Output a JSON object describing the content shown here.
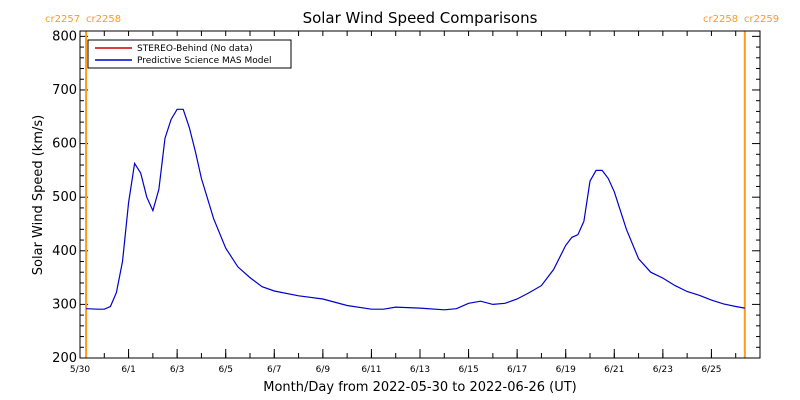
{
  "chart_data": {
    "type": "line",
    "title": "Solar Wind Speed Comparisons",
    "xlabel": "Month/Day from 2022-05-30 to 2022-06-26 (UT)",
    "ylabel": "Solar Wind Speed (km/s)",
    "xlim": [
      "2022-05-30",
      "2022-06-27"
    ],
    "ylim": [
      200,
      810
    ],
    "yticks": [
      200,
      300,
      400,
      500,
      600,
      700,
      800
    ],
    "xticks": [
      {
        "date": "2022-05-30",
        "label": "5/30"
      },
      {
        "date": "2022-06-01",
        "label": "6/1"
      },
      {
        "date": "2022-06-03",
        "label": "6/3"
      },
      {
        "date": "2022-06-05",
        "label": "6/5"
      },
      {
        "date": "2022-06-07",
        "label": "6/7"
      },
      {
        "date": "2022-06-09",
        "label": "6/9"
      },
      {
        "date": "2022-06-11",
        "label": "6/11"
      },
      {
        "date": "2022-06-13",
        "label": "6/13"
      },
      {
        "date": "2022-06-15",
        "label": "6/15"
      },
      {
        "date": "2022-06-17",
        "label": "6/17"
      },
      {
        "date": "2022-06-19",
        "label": "6/19"
      },
      {
        "date": "2022-06-21",
        "label": "6/21"
      },
      {
        "date": "2022-06-23",
        "label": "6/23"
      },
      {
        "date": "2022-06-25",
        "label": "6/25"
      }
    ],
    "carrington_labels": {
      "left": [
        "cr2257",
        "cr2258"
      ],
      "right": [
        "cr2258",
        "cr2259"
      ]
    },
    "carrington_markers": [
      "2022-05-30 06:00",
      "2022-06-26 09:00"
    ],
    "series": [
      {
        "name": "STEREO-Behind (No data)",
        "color": "#cc0000",
        "points": []
      },
      {
        "name": "Predictive Science MAS Model",
        "color": "#0000cc",
        "points": [
          [
            "2022-05-30 06:00",
            292
          ],
          [
            "2022-05-30 18:00",
            291
          ],
          [
            "2022-05-31 00:00",
            291
          ],
          [
            "2022-05-31 06:00",
            296
          ],
          [
            "2022-05-31 12:00",
            322
          ],
          [
            "2022-05-31 18:00",
            380
          ],
          [
            "2022-06-01 00:00",
            490
          ],
          [
            "2022-06-01 06:00",
            563
          ],
          [
            "2022-06-01 12:00",
            545
          ],
          [
            "2022-06-01 18:00",
            500
          ],
          [
            "2022-06-02 00:00",
            475
          ],
          [
            "2022-06-02 06:00",
            515
          ],
          [
            "2022-06-02 12:00",
            610
          ],
          [
            "2022-06-02 18:00",
            645
          ],
          [
            "2022-06-03 00:00",
            664
          ],
          [
            "2022-06-03 06:00",
            664
          ],
          [
            "2022-06-03 12:00",
            630
          ],
          [
            "2022-06-03 18:00",
            585
          ],
          [
            "2022-06-04 00:00",
            535
          ],
          [
            "2022-06-04 12:00",
            460
          ],
          [
            "2022-06-05 00:00",
            405
          ],
          [
            "2022-06-05 12:00",
            370
          ],
          [
            "2022-06-06 00:00",
            350
          ],
          [
            "2022-06-06 12:00",
            333
          ],
          [
            "2022-06-07 00:00",
            325
          ],
          [
            "2022-06-08 00:00",
            316
          ],
          [
            "2022-06-09 00:00",
            310
          ],
          [
            "2022-06-10 00:00",
            298
          ],
          [
            "2022-06-11 00:00",
            291
          ],
          [
            "2022-06-11 12:00",
            291
          ],
          [
            "2022-06-12 00:00",
            295
          ],
          [
            "2022-06-13 00:00",
            293
          ],
          [
            "2022-06-14 00:00",
            290
          ],
          [
            "2022-06-14 12:00",
            292
          ],
          [
            "2022-06-15 00:00",
            302
          ],
          [
            "2022-06-15 12:00",
            306
          ],
          [
            "2022-06-16 00:00",
            300
          ],
          [
            "2022-06-16 12:00",
            302
          ],
          [
            "2022-06-17 00:00",
            310
          ],
          [
            "2022-06-17 12:00",
            322
          ],
          [
            "2022-06-18 00:00",
            335
          ],
          [
            "2022-06-18 12:00",
            365
          ],
          [
            "2022-06-19 00:00",
            410
          ],
          [
            "2022-06-19 06:00",
            425
          ],
          [
            "2022-06-19 12:00",
            430
          ],
          [
            "2022-06-19 18:00",
            455
          ],
          [
            "2022-06-20 00:00",
            530
          ],
          [
            "2022-06-20 06:00",
            550
          ],
          [
            "2022-06-20 12:00",
            550
          ],
          [
            "2022-06-20 18:00",
            535
          ],
          [
            "2022-06-21 00:00",
            510
          ],
          [
            "2022-06-21 12:00",
            440
          ],
          [
            "2022-06-22 00:00",
            385
          ],
          [
            "2022-06-22 12:00",
            360
          ],
          [
            "2022-06-23 00:00",
            349
          ],
          [
            "2022-06-23 12:00",
            335
          ],
          [
            "2022-06-24 00:00",
            324
          ],
          [
            "2022-06-24 12:00",
            317
          ],
          [
            "2022-06-25 00:00",
            308
          ],
          [
            "2022-06-25 12:00",
            301
          ],
          [
            "2022-06-26 00:00",
            296
          ],
          [
            "2022-06-26 09:00",
            293
          ]
        ]
      }
    ],
    "legend": {
      "position": "top-left",
      "frame": true
    },
    "marker_color": "#ff9a1a"
  }
}
